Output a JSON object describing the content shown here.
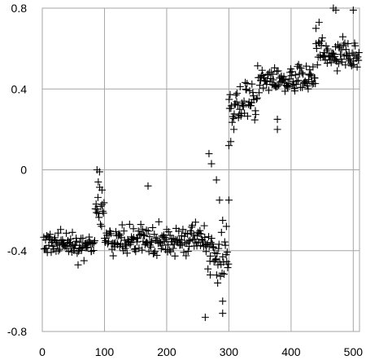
{
  "chart_data": {
    "type": "scatter",
    "marker": "plus",
    "marker_color": "#000000",
    "grid": true,
    "grid_color": "#a6a6a6",
    "xlim": [
      0,
      510
    ],
    "ylim": [
      -0.8,
      0.8
    ],
    "x_ticks": [
      0,
      100,
      200,
      300,
      400,
      500
    ],
    "y_ticks": [
      0.8,
      0.4,
      0,
      -0.4,
      -0.8
    ],
    "x_tick_labels": [
      "0",
      "100",
      "200",
      "300",
      "400",
      "500"
    ],
    "y_tick_labels": [
      "0.8",
      "0.4",
      "0",
      "-0.4",
      "-0.8"
    ],
    "segments": [
      {
        "x_range": [
          2,
          85
        ],
        "y_mean": -0.37,
        "y_spread": 0.09
      },
      {
        "x_range": [
          85,
          100
        ],
        "y_mean": -0.2,
        "y_spread": 0.1
      },
      {
        "x_range": [
          100,
          262
        ],
        "y_mean": -0.35,
        "y_spread": 0.09
      },
      {
        "x_range": [
          262,
          300
        ],
        "y_mean": -0.42,
        "y_spread": 0.13
      },
      {
        "x_range": [
          300,
          345
        ],
        "y_mean": 0.33,
        "y_spread": 0.12
      },
      {
        "x_range": [
          345,
          440
        ],
        "y_mean": 0.45,
        "y_spread": 0.09
      },
      {
        "x_range": [
          440,
          510
        ],
        "y_mean": 0.58,
        "y_spread": 0.1
      }
    ],
    "highlights": [
      {
        "x": 88,
        "y": 0.0
      },
      {
        "x": 92,
        "y": -0.01
      },
      {
        "x": 90,
        "y": -0.06
      },
      {
        "x": 96,
        "y": -0.1
      },
      {
        "x": 170,
        "y": -0.08
      },
      {
        "x": 262,
        "y": -0.73
      },
      {
        "x": 290,
        "y": -0.71
      },
      {
        "x": 290,
        "y": -0.65
      },
      {
        "x": 270,
        "y": -0.52
      },
      {
        "x": 282,
        "y": -0.56
      },
      {
        "x": 268,
        "y": 0.08
      },
      {
        "x": 272,
        "y": 0.03
      },
      {
        "x": 280,
        "y": -0.05
      },
      {
        "x": 285,
        "y": -0.15
      },
      {
        "x": 290,
        "y": -0.25
      },
      {
        "x": 296,
        "y": -0.28
      },
      {
        "x": 300,
        "y": -0.15
      },
      {
        "x": 300,
        "y": 0.12
      },
      {
        "x": 303,
        "y": 0.14
      },
      {
        "x": 308,
        "y": 0.2
      },
      {
        "x": 378,
        "y": 0.2
      },
      {
        "x": 378,
        "y": 0.25
      },
      {
        "x": 468,
        "y": 0.8
      },
      {
        "x": 472,
        "y": 0.79
      },
      {
        "x": 500,
        "y": 0.79
      },
      {
        "x": 445,
        "y": 0.73
      },
      {
        "x": 440,
        "y": 0.7
      }
    ]
  }
}
